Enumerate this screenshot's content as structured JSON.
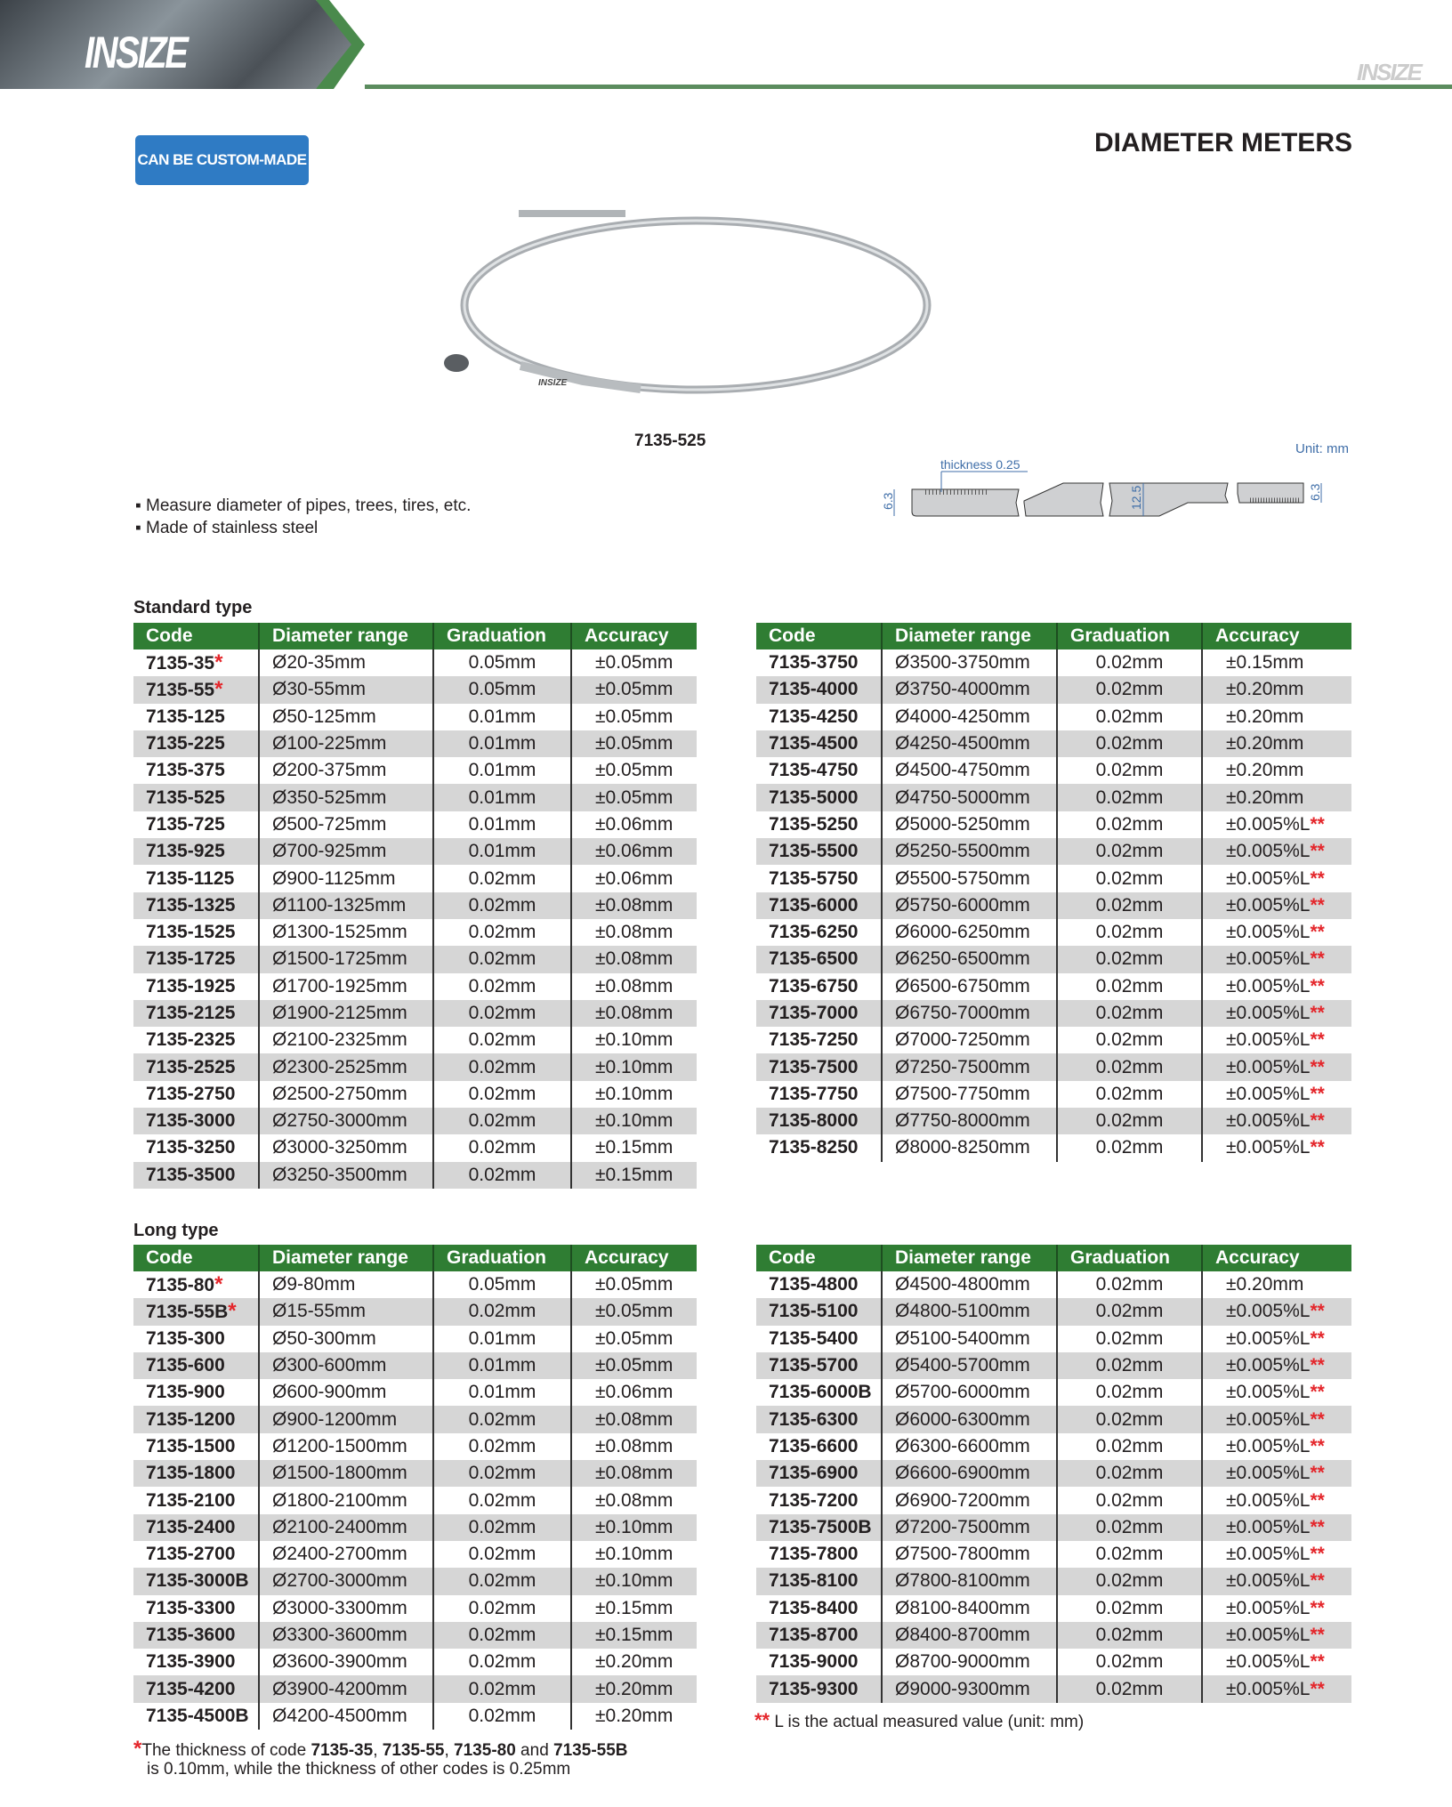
{
  "header": {
    "logo": "INSIZE",
    "watermark_logo": "INSIZE"
  },
  "badge": "CAN BE CUSTOM-MADE",
  "title": "DIAMETER METERS",
  "product": {
    "caption": "7135-525",
    "tape_logo": "INSIZE"
  },
  "diagram": {
    "unit": "Unit: mm",
    "thickness": "thickness 0.25",
    "dim_left": "6.3",
    "dim_mid": "12.5",
    "dim_right": "6.3"
  },
  "features": [
    "Measure diameter of pipes, trees, tires, etc.",
    "Made of stainless steel"
  ],
  "columns": [
    "Code",
    "Diameter range",
    "Graduation",
    "Accuracy"
  ],
  "colors": {
    "header_green": "#2f7d33",
    "badge_blue": "#2f7bc4",
    "star_red": "#e4262b"
  },
  "standard": {
    "title": "Standard type",
    "left": [
      [
        "7135-35",
        "Ø20-35mm",
        "0.05mm",
        "±0.05mm",
        "*"
      ],
      [
        "7135-55",
        "Ø30-55mm",
        "0.05mm",
        "±0.05mm",
        "*"
      ],
      [
        "7135-125",
        "Ø50-125mm",
        "0.01mm",
        "±0.05mm",
        ""
      ],
      [
        "7135-225",
        "Ø100-225mm",
        "0.01mm",
        "±0.05mm",
        ""
      ],
      [
        "7135-375",
        "Ø200-375mm",
        "0.01mm",
        "±0.05mm",
        ""
      ],
      [
        "7135-525",
        "Ø350-525mm",
        "0.01mm",
        "±0.05mm",
        ""
      ],
      [
        "7135-725",
        "Ø500-725mm",
        "0.01mm",
        "±0.06mm",
        ""
      ],
      [
        "7135-925",
        "Ø700-925mm",
        "0.01mm",
        "±0.06mm",
        ""
      ],
      [
        "7135-1125",
        "Ø900-1125mm",
        "0.02mm",
        "±0.06mm",
        ""
      ],
      [
        "7135-1325",
        "Ø1100-1325mm",
        "0.02mm",
        "±0.08mm",
        ""
      ],
      [
        "7135-1525",
        "Ø1300-1525mm",
        "0.02mm",
        "±0.08mm",
        ""
      ],
      [
        "7135-1725",
        "Ø1500-1725mm",
        "0.02mm",
        "±0.08mm",
        ""
      ],
      [
        "7135-1925",
        "Ø1700-1925mm",
        "0.02mm",
        "±0.08mm",
        ""
      ],
      [
        "7135-2125",
        "Ø1900-2125mm",
        "0.02mm",
        "±0.08mm",
        ""
      ],
      [
        "7135-2325",
        "Ø2100-2325mm",
        "0.02mm",
        "±0.10mm",
        ""
      ],
      [
        "7135-2525",
        "Ø2300-2525mm",
        "0.02mm",
        "±0.10mm",
        ""
      ],
      [
        "7135-2750",
        "Ø2500-2750mm",
        "0.02mm",
        "±0.10mm",
        ""
      ],
      [
        "7135-3000",
        "Ø2750-3000mm",
        "0.02mm",
        "±0.10mm",
        ""
      ],
      [
        "7135-3250",
        "Ø3000-3250mm",
        "0.02mm",
        "±0.15mm",
        ""
      ],
      [
        "7135-3500",
        "Ø3250-3500mm",
        "0.02mm",
        "±0.15mm",
        ""
      ]
    ],
    "right": [
      [
        "7135-3750",
        "Ø3500-3750mm",
        "0.02mm",
        "±0.15mm",
        ""
      ],
      [
        "7135-4000",
        "Ø3750-4000mm",
        "0.02mm",
        "±0.20mm",
        ""
      ],
      [
        "7135-4250",
        "Ø4000-4250mm",
        "0.02mm",
        "±0.20mm",
        ""
      ],
      [
        "7135-4500",
        "Ø4250-4500mm",
        "0.02mm",
        "±0.20mm",
        ""
      ],
      [
        "7135-4750",
        "Ø4500-4750mm",
        "0.02mm",
        "±0.20mm",
        ""
      ],
      [
        "7135-5000",
        "Ø4750-5000mm",
        "0.02mm",
        "±0.20mm",
        ""
      ],
      [
        "7135-5250",
        "Ø5000-5250mm",
        "0.02mm",
        "±0.005%L",
        "**"
      ],
      [
        "7135-5500",
        "Ø5250-5500mm",
        "0.02mm",
        "±0.005%L",
        "**"
      ],
      [
        "7135-5750",
        "Ø5500-5750mm",
        "0.02mm",
        "±0.005%L",
        "**"
      ],
      [
        "7135-6000",
        "Ø5750-6000mm",
        "0.02mm",
        "±0.005%L",
        "**"
      ],
      [
        "7135-6250",
        "Ø6000-6250mm",
        "0.02mm",
        "±0.005%L",
        "**"
      ],
      [
        "7135-6500",
        "Ø6250-6500mm",
        "0.02mm",
        "±0.005%L",
        "**"
      ],
      [
        "7135-6750",
        "Ø6500-6750mm",
        "0.02mm",
        "±0.005%L",
        "**"
      ],
      [
        "7135-7000",
        "Ø6750-7000mm",
        "0.02mm",
        "±0.005%L",
        "**"
      ],
      [
        "7135-7250",
        "Ø7000-7250mm",
        "0.02mm",
        "±0.005%L",
        "**"
      ],
      [
        "7135-7500",
        "Ø7250-7500mm",
        "0.02mm",
        "±0.005%L",
        "**"
      ],
      [
        "7135-7750",
        "Ø7500-7750mm",
        "0.02mm",
        "±0.005%L",
        "**"
      ],
      [
        "7135-8000",
        "Ø7750-8000mm",
        "0.02mm",
        "±0.005%L",
        "**"
      ],
      [
        "7135-8250",
        "Ø8000-8250mm",
        "0.02mm",
        "±0.005%L",
        "**"
      ]
    ]
  },
  "long": {
    "title": "Long type",
    "left": [
      [
        "7135-80",
        "Ø9-80mm",
        "0.05mm",
        "±0.05mm",
        "*"
      ],
      [
        "7135-55B",
        "Ø15-55mm",
        "0.02mm",
        "±0.05mm",
        "*"
      ],
      [
        "7135-300",
        "Ø50-300mm",
        "0.01mm",
        "±0.05mm",
        ""
      ],
      [
        "7135-600",
        "Ø300-600mm",
        "0.01mm",
        "±0.05mm",
        ""
      ],
      [
        "7135-900",
        "Ø600-900mm",
        "0.01mm",
        "±0.06mm",
        ""
      ],
      [
        "7135-1200",
        "Ø900-1200mm",
        "0.02mm",
        "±0.08mm",
        ""
      ],
      [
        "7135-1500",
        "Ø1200-1500mm",
        "0.02mm",
        "±0.08mm",
        ""
      ],
      [
        "7135-1800",
        "Ø1500-1800mm",
        "0.02mm",
        "±0.08mm",
        ""
      ],
      [
        "7135-2100",
        "Ø1800-2100mm",
        "0.02mm",
        "±0.08mm",
        ""
      ],
      [
        "7135-2400",
        "Ø2100-2400mm",
        "0.02mm",
        "±0.10mm",
        ""
      ],
      [
        "7135-2700",
        "Ø2400-2700mm",
        "0.02mm",
        "±0.10mm",
        ""
      ],
      [
        "7135-3000B",
        "Ø2700-3000mm",
        "0.02mm",
        "±0.10mm",
        ""
      ],
      [
        "7135-3300",
        "Ø3000-3300mm",
        "0.02mm",
        "±0.15mm",
        ""
      ],
      [
        "7135-3600",
        "Ø3300-3600mm",
        "0.02mm",
        "±0.15mm",
        ""
      ],
      [
        "7135-3900",
        "Ø3600-3900mm",
        "0.02mm",
        "±0.20mm",
        ""
      ],
      [
        "7135-4200",
        "Ø3900-4200mm",
        "0.02mm",
        "±0.20mm",
        ""
      ],
      [
        "7135-4500B",
        "Ø4200-4500mm",
        "0.02mm",
        "±0.20mm",
        ""
      ]
    ],
    "right": [
      [
        "7135-4800",
        "Ø4500-4800mm",
        "0.02mm",
        "±0.20mm",
        ""
      ],
      [
        "7135-5100",
        "Ø4800-5100mm",
        "0.02mm",
        "±0.005%L",
        "**"
      ],
      [
        "7135-5400",
        "Ø5100-5400mm",
        "0.02mm",
        "±0.005%L",
        "**"
      ],
      [
        "7135-5700",
        "Ø5400-5700mm",
        "0.02mm",
        "±0.005%L",
        "**"
      ],
      [
        "7135-6000B",
        "Ø5700-6000mm",
        "0.02mm",
        "±0.005%L",
        "**"
      ],
      [
        "7135-6300",
        "Ø6000-6300mm",
        "0.02mm",
        "±0.005%L",
        "**"
      ],
      [
        "7135-6600",
        "Ø6300-6600mm",
        "0.02mm",
        "±0.005%L",
        "**"
      ],
      [
        "7135-6900",
        "Ø6600-6900mm",
        "0.02mm",
        "±0.005%L",
        "**"
      ],
      [
        "7135-7200",
        "Ø6900-7200mm",
        "0.02mm",
        "±0.005%L",
        "**"
      ],
      [
        "7135-7500B",
        "Ø7200-7500mm",
        "0.02mm",
        "±0.005%L",
        "**"
      ],
      [
        "7135-7800",
        "Ø7500-7800mm",
        "0.02mm",
        "±0.005%L",
        "**"
      ],
      [
        "7135-8100",
        "Ø7800-8100mm",
        "0.02mm",
        "±0.005%L",
        "**"
      ],
      [
        "7135-8400",
        "Ø8100-8400mm",
        "0.02mm",
        "±0.005%L",
        "**"
      ],
      [
        "7135-8700",
        "Ø8400-8700mm",
        "0.02mm",
        "±0.005%L",
        "**"
      ],
      [
        "7135-9000",
        "Ø8700-9000mm",
        "0.02mm",
        "±0.005%L",
        "**"
      ],
      [
        "7135-9300",
        "Ø9000-9300mm",
        "0.02mm",
        "±0.005%L",
        "**"
      ]
    ]
  },
  "footnotes": {
    "single": {
      "star": "*",
      "pre": "The thickness of code ",
      "c1": "7135-35",
      "s1": ", ",
      "c2": "7135-55",
      "s2": ", ",
      "c3": "7135-80",
      "s3": " and ",
      "c4": "7135-55B",
      "line2": "is 0.10mm, while the thickness of other codes is 0.25mm"
    },
    "double": {
      "star": "**",
      "text": " L is the actual measured value (unit: mm)"
    }
  }
}
